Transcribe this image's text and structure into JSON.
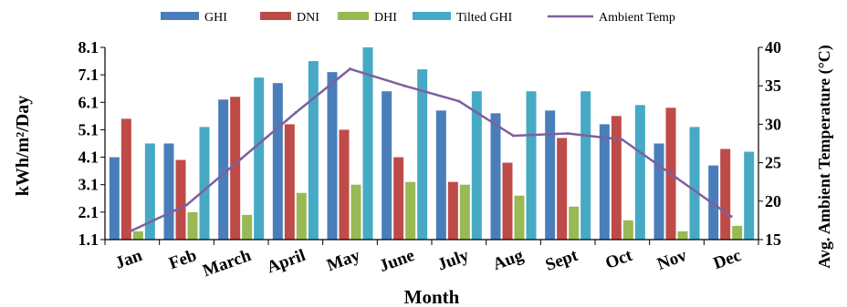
{
  "chart_data": {
    "type": "bar",
    "title": "",
    "categories": [
      "Jan",
      "Feb",
      "March",
      "April",
      "May",
      "June",
      "July",
      "Aug",
      "Sept",
      "Oct",
      "Nov",
      "Dec"
    ],
    "xlabel": "Month",
    "ylabel": "kWh/m²/Day",
    "ylabel_right": "Avg. Ambient Temperature (°C)",
    "ylim": [
      1.1,
      8.1
    ],
    "yticks": [
      "1.1",
      "2.1",
      "3.1",
      "4.1",
      "5.1",
      "6.1",
      "7.1",
      "8.1"
    ],
    "ylim_right": [
      15,
      40
    ],
    "yticks_right": [
      "15",
      "20",
      "25",
      "30",
      "35",
      "40"
    ],
    "grid": false,
    "legend_position": "top",
    "series": [
      {
        "name": "GHI",
        "type": "bar",
        "axis": "left",
        "color": "#4a7ebb",
        "values": [
          4.1,
          4.6,
          6.2,
          6.8,
          7.2,
          6.5,
          5.8,
          5.7,
          5.8,
          5.3,
          4.6,
          3.8
        ]
      },
      {
        "name": "DNI",
        "type": "bar",
        "axis": "left",
        "color": "#be4b48",
        "values": [
          5.5,
          4.0,
          6.3,
          5.3,
          5.1,
          4.1,
          3.2,
          3.9,
          4.8,
          5.6,
          5.9,
          4.4
        ]
      },
      {
        "name": "DHI",
        "type": "bar",
        "axis": "left",
        "color": "#98b954",
        "values": [
          1.4,
          2.1,
          2.0,
          2.8,
          3.1,
          3.2,
          3.1,
          2.7,
          2.3,
          1.8,
          1.4,
          1.6
        ]
      },
      {
        "name": "Tilted GHI",
        "type": "bar",
        "axis": "left",
        "color": "#46aac5",
        "values": [
          4.6,
          5.2,
          7.0,
          7.6,
          8.1,
          7.3,
          6.5,
          6.5,
          6.5,
          6.0,
          5.2,
          4.3
        ]
      },
      {
        "name": "Ambient Temp",
        "type": "line",
        "axis": "right",
        "color": "#7d60a0",
        "values": [
          16.2,
          19.5,
          25.5,
          31.5,
          37.2,
          35.0,
          33.0,
          28.5,
          28.8,
          28.0,
          23.0,
          18.0
        ]
      }
    ]
  }
}
